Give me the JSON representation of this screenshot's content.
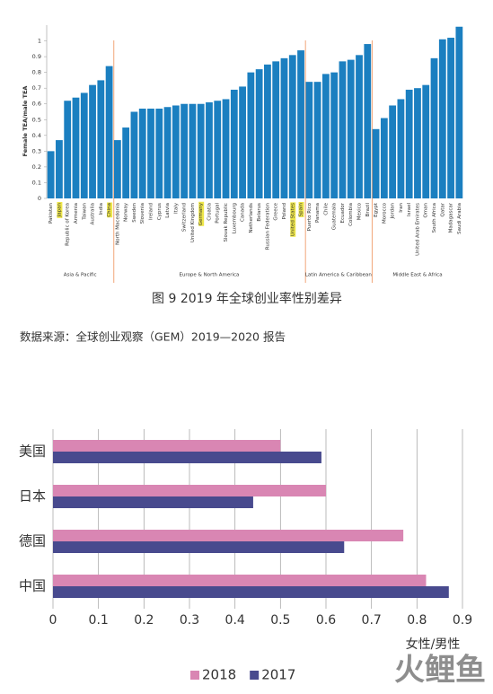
{
  "chart_data": [
    {
      "type": "bar",
      "y_label": "Female TEA/male TEA",
      "color": "#1b7fc0",
      "ylim": [
        0,
        1.1
      ],
      "yticks": [
        0,
        0.1,
        0.2,
        0.3,
        0.4,
        0.5,
        0.6,
        0.7,
        0.8,
        0.9,
        1
      ],
      "highlight_color": "#eee64a",
      "separator_color": "#f2a679",
      "highlight": [
        "Japan",
        "China",
        "Germany",
        "United States",
        "Spain"
      ],
      "groups": [
        {
          "label": "Asia & Pacific",
          "categories": [
            "Pakistan",
            "Japan",
            "Republic of Korea",
            "Armenia",
            "Taiwan",
            "Australia",
            "India",
            "China"
          ],
          "values": [
            0.3,
            0.37,
            0.62,
            0.64,
            0.67,
            0.72,
            0.75,
            0.84
          ]
        },
        {
          "label": "Europe & North America",
          "categories": [
            "North Macedonia",
            "Norway",
            "Sweden",
            "Slovenia",
            "Ireland",
            "Cyprus",
            "Latvia",
            "Italy",
            "Switzerland",
            "United Kingdom",
            "Germany",
            "Croatia",
            "Portugal",
            "Slovak Republic",
            "Luxembourg",
            "Canada",
            "Netherlands",
            "Belarus",
            "Russian Federation",
            "Greece",
            "Poland",
            "United States",
            "Spain"
          ],
          "values": [
            0.37,
            0.45,
            0.55,
            0.57,
            0.57,
            0.57,
            0.58,
            0.59,
            0.6,
            0.6,
            0.6,
            0.61,
            0.62,
            0.63,
            0.69,
            0.71,
            0.8,
            0.82,
            0.85,
            0.87,
            0.89,
            0.91,
            0.94
          ]
        },
        {
          "label": "Latin America & Caribbean",
          "categories": [
            "Puerto Rico",
            "Panama",
            "Chile",
            "Guatemala",
            "Ecuador",
            "Colombia",
            "Mexico",
            "Brazil"
          ],
          "values": [
            0.74,
            0.74,
            0.79,
            0.8,
            0.87,
            0.88,
            0.91,
            0.98
          ]
        },
        {
          "label": "Middle East & Africa",
          "categories": [
            "Egypt",
            "Morocco",
            "Jordan",
            "Iran",
            "Israel",
            "United Arab Emirates",
            "Oman",
            "South Africa",
            "Qatar",
            "Madagascar",
            "Saudi Arabia"
          ],
          "values": [
            0.44,
            0.51,
            0.59,
            0.63,
            0.69,
            0.7,
            0.72,
            0.89,
            1.01,
            1.02,
            1.09
          ]
        }
      ]
    },
    {
      "type": "hbar",
      "x_label": "女性/男性",
      "xlim": [
        0,
        0.9
      ],
      "xticks": [
        0,
        0.1,
        0.2,
        0.3,
        0.4,
        0.5,
        0.6,
        0.7,
        0.8,
        0.9
      ],
      "grid": true,
      "legend": "bottom",
      "categories": [
        "美国",
        "日本",
        "德国",
        "中国"
      ],
      "series": [
        {
          "name": "2018",
          "color": "#d986b3",
          "values": [
            0.5,
            0.6,
            0.77,
            0.82
          ]
        },
        {
          "name": "2017",
          "color": "#484a8e",
          "values": [
            0.59,
            0.44,
            0.64,
            0.87
          ]
        }
      ]
    }
  ],
  "figure_caption": "图 9  2019 年全球创业率性别差异",
  "source_note": "数据来源：全球创业观察（GEM）2019—2020 报告",
  "watermark": "火鲤鱼"
}
